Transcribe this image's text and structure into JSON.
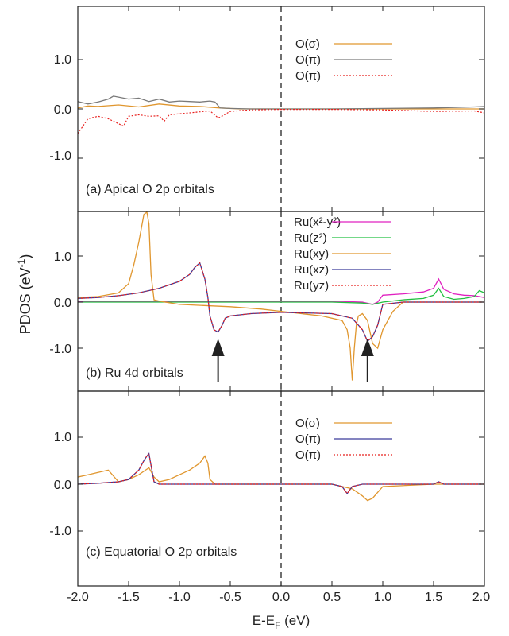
{
  "figure": {
    "ylabel": "PDOS (eV",
    "ylabel_sup": "-1",
    "ylabel_end": ")",
    "xlabel_main": "E-E",
    "xlabel_sub": "F",
    "xlabel_end": " (eV)",
    "x_ticks": [
      "-2.0",
      "-1.5",
      "-1.0",
      "-0.5",
      "0.0",
      "0.5",
      "1.0",
      "1.5",
      "2.0"
    ],
    "y_ticks": [
      "1.0",
      "0.0",
      "-1.0"
    ]
  },
  "colors": {
    "orange": "#e0962e",
    "gray": "#7a7a7a",
    "red": "#e8201e",
    "navy": "#3a3a9a",
    "magenta": "#e020c0",
    "green": "#22c040",
    "axis": "#222222"
  },
  "chart_data": [
    {
      "type": "line",
      "title": "(a) Apical O 2p orbitals",
      "xlim": [
        -2.0,
        2.0
      ],
      "ylim": [
        -1.9,
        1.9
      ],
      "legend_position": "top-right",
      "series": [
        {
          "name": "O(σ)",
          "color_key": "orange",
          "dash": "solid",
          "x": [
            -2.0,
            -1.9,
            -1.8,
            -1.6,
            -1.4,
            -1.2,
            -1.0,
            -0.8,
            -0.6,
            -0.4,
            0.0,
            0.5,
            1.0,
            1.5,
            2.0
          ],
          "y": [
            0.02,
            0.06,
            0.05,
            0.08,
            0.04,
            0.1,
            0.06,
            0.05,
            0.02,
            0.0,
            0.0,
            0.0,
            0.0,
            0.0,
            0.0
          ]
        },
        {
          "name": "O(π)",
          "color_key": "gray",
          "dash": "solid",
          "x": [
            -2.0,
            -1.9,
            -1.8,
            -1.7,
            -1.65,
            -1.6,
            -1.5,
            -1.4,
            -1.3,
            -1.2,
            -1.1,
            -1.0,
            -0.9,
            -0.8,
            -0.7,
            -0.65,
            -0.6,
            -0.5,
            -0.3,
            0.0,
            0.5,
            1.0,
            1.5,
            1.9,
            2.0
          ],
          "y": [
            0.15,
            0.1,
            0.14,
            0.2,
            0.26,
            0.24,
            0.2,
            0.22,
            0.15,
            0.2,
            0.14,
            0.16,
            0.15,
            0.14,
            0.16,
            0.14,
            0.02,
            0.01,
            0.0,
            0.0,
            0.0,
            0.01,
            0.02,
            0.04,
            0.05
          ]
        },
        {
          "name": "O(π)",
          "color_key": "red",
          "dash": "dotted",
          "x": [
            -2.0,
            -1.9,
            -1.8,
            -1.7,
            -1.6,
            -1.55,
            -1.5,
            -1.4,
            -1.3,
            -1.2,
            -1.15,
            -1.1,
            -1.0,
            -0.9,
            -0.8,
            -0.7,
            -0.62,
            -0.6,
            -0.5,
            -0.3,
            0.0,
            0.5,
            1.0,
            1.5,
            1.9,
            2.0
          ],
          "y": [
            -0.5,
            -0.2,
            -0.15,
            -0.2,
            -0.3,
            -0.35,
            -0.15,
            -0.12,
            -0.15,
            -0.14,
            -0.25,
            -0.12,
            -0.1,
            -0.08,
            -0.06,
            -0.04,
            -0.18,
            -0.17,
            -0.05,
            -0.02,
            -0.01,
            -0.01,
            -0.02,
            -0.05,
            -0.04,
            -0.08
          ]
        }
      ]
    },
    {
      "type": "line",
      "title": "(b) Ru 4d orbitals",
      "xlim": [
        -2.0,
        2.0
      ],
      "ylim": [
        -1.9,
        1.9
      ],
      "legend_position": "top-right",
      "series": [
        {
          "name": "Ru(x²-y²)",
          "color_key": "magenta",
          "dash": "solid",
          "x": [
            -2.0,
            -1.5,
            -1.0,
            -0.5,
            0.0,
            0.5,
            0.8,
            0.9,
            0.95,
            1.0,
            1.2,
            1.4,
            1.5,
            1.55,
            1.6,
            1.7,
            1.8,
            1.9,
            2.0
          ],
          "y": [
            0.02,
            0.02,
            0.02,
            0.02,
            0.02,
            0.02,
            0.0,
            -0.05,
            0.0,
            0.15,
            0.18,
            0.22,
            0.3,
            0.5,
            0.28,
            0.18,
            0.15,
            0.14,
            0.1
          ]
        },
        {
          "name": "Ru(z²)",
          "color_key": "green",
          "dash": "solid",
          "x": [
            -2.0,
            -1.5,
            -1.0,
            -0.5,
            0.0,
            0.5,
            0.8,
            0.9,
            1.0,
            1.2,
            1.4,
            1.5,
            1.55,
            1.6,
            1.7,
            1.8,
            1.9,
            1.95,
            2.0
          ],
          "y": [
            0.0,
            0.0,
            0.0,
            0.0,
            0.0,
            0.0,
            -0.02,
            -0.05,
            0.0,
            0.05,
            0.08,
            0.15,
            0.3,
            0.12,
            0.06,
            0.08,
            0.12,
            0.25,
            0.2
          ]
        },
        {
          "name": "Ru(xy)",
          "color_key": "orange",
          "dash": "solid",
          "x": [
            -2.0,
            -1.8,
            -1.6,
            -1.5,
            -1.45,
            -1.4,
            -1.35,
            -1.32,
            -1.3,
            -1.28,
            -1.25,
            -1.2,
            -1.0,
            -0.5,
            -0.2,
            0.0,
            0.2,
            0.4,
            0.6,
            0.65,
            0.68,
            0.7,
            0.72,
            0.74,
            0.76,
            0.8,
            0.85,
            0.9,
            0.95,
            1.0,
            1.1,
            1.2,
            1.5,
            2.0
          ],
          "y": [
            0.1,
            0.12,
            0.2,
            0.4,
            0.8,
            1.3,
            1.9,
            1.95,
            1.7,
            0.6,
            0.05,
            0.02,
            -0.05,
            -0.1,
            -0.15,
            -0.2,
            -0.25,
            -0.3,
            -0.4,
            -0.6,
            -1.0,
            -1.7,
            -1.0,
            -0.5,
            -0.3,
            -0.25,
            -0.4,
            -0.9,
            -1.0,
            -0.6,
            -0.2,
            0.0,
            0.0,
            0.0
          ]
        },
        {
          "name": "Ru(xz)",
          "color_key": "navy",
          "dash": "solid",
          "x": [
            -2.0,
            -1.8,
            -1.6,
            -1.4,
            -1.2,
            -1.0,
            -0.9,
            -0.85,
            -0.8,
            -0.75,
            -0.72,
            -0.7,
            -0.66,
            -0.62,
            -0.58,
            -0.55,
            -0.5,
            -0.3,
            0.0,
            0.5,
            0.7,
            0.8,
            0.85,
            0.9,
            0.95,
            1.0,
            1.2,
            1.5,
            2.0
          ],
          "y": [
            0.08,
            0.1,
            0.14,
            0.2,
            0.3,
            0.45,
            0.6,
            0.75,
            0.85,
            0.5,
            0.1,
            -0.3,
            -0.6,
            -0.65,
            -0.5,
            -0.35,
            -0.3,
            -0.25,
            -0.22,
            -0.25,
            -0.35,
            -0.6,
            -0.85,
            -0.75,
            -0.5,
            -0.05,
            0.0,
            0.0,
            0.0
          ]
        },
        {
          "name": "Ru(yz)",
          "color_key": "red",
          "dash": "dotted",
          "x": [
            -2.0,
            -1.8,
            -1.6,
            -1.4,
            -1.2,
            -1.0,
            -0.9,
            -0.85,
            -0.8,
            -0.75,
            -0.72,
            -0.7,
            -0.66,
            -0.62,
            -0.58,
            -0.55,
            -0.5,
            -0.3,
            0.0,
            0.5,
            0.7,
            0.8,
            0.85,
            0.9,
            0.95,
            1.0,
            1.2,
            1.5,
            2.0
          ],
          "y": [
            0.08,
            0.1,
            0.14,
            0.2,
            0.3,
            0.45,
            0.6,
            0.75,
            0.85,
            0.5,
            0.1,
            -0.3,
            -0.6,
            -0.65,
            -0.5,
            -0.35,
            -0.3,
            -0.25,
            -0.22,
            -0.25,
            -0.35,
            -0.6,
            -0.85,
            -0.75,
            -0.5,
            -0.05,
            0.0,
            0.0,
            0.0
          ]
        }
      ],
      "arrows_at_x": [
        -0.62,
        0.85
      ]
    },
    {
      "type": "line",
      "title": "(c) Equatorial O 2p orbitals",
      "xlim": [
        -2.0,
        2.0
      ],
      "ylim": [
        -1.9,
        1.9
      ],
      "legend_position": "top-right",
      "series": [
        {
          "name": "O(σ)",
          "color_key": "orange",
          "dash": "solid",
          "x": [
            -2.0,
            -1.9,
            -1.8,
            -1.7,
            -1.6,
            -1.5,
            -1.4,
            -1.3,
            -1.25,
            -1.2,
            -1.1,
            -1.0,
            -0.9,
            -0.8,
            -0.75,
            -0.72,
            -0.7,
            -0.65,
            -0.5,
            0.0,
            0.5,
            0.7,
            0.8,
            0.85,
            0.9,
            1.0,
            1.5,
            2.0
          ],
          "y": [
            0.15,
            0.2,
            0.25,
            0.3,
            0.05,
            0.1,
            0.2,
            0.35,
            0.15,
            0.05,
            0.1,
            0.2,
            0.3,
            0.45,
            0.6,
            0.45,
            0.1,
            0.0,
            0.0,
            0.0,
            0.0,
            -0.1,
            -0.25,
            -0.35,
            -0.3,
            -0.05,
            0.0,
            0.0
          ]
        },
        {
          "name": "O(π)",
          "color_key": "navy",
          "dash": "solid",
          "x": [
            -2.0,
            -1.8,
            -1.6,
            -1.5,
            -1.4,
            -1.35,
            -1.32,
            -1.3,
            -1.28,
            -1.25,
            -1.2,
            -1.0,
            -0.5,
            0.0,
            0.5,
            0.6,
            0.65,
            0.7,
            0.8,
            1.0,
            1.5,
            1.55,
            1.6,
            2.0
          ],
          "y": [
            0.0,
            0.02,
            0.05,
            0.1,
            0.3,
            0.5,
            0.6,
            0.65,
            0.4,
            0.05,
            0.0,
            0.0,
            0.0,
            0.0,
            0.0,
            -0.05,
            -0.2,
            -0.05,
            0.0,
            0.0,
            0.0,
            0.05,
            0.0,
            0.0
          ]
        },
        {
          "name": "O(π)",
          "color_key": "red",
          "dash": "dotted",
          "x": [
            -2.0,
            -1.8,
            -1.6,
            -1.5,
            -1.4,
            -1.35,
            -1.32,
            -1.3,
            -1.28,
            -1.25,
            -1.2,
            -1.0,
            -0.5,
            0.0,
            0.5,
            0.6,
            0.65,
            0.7,
            0.8,
            1.0,
            1.5,
            1.55,
            1.6,
            2.0
          ],
          "y": [
            0.0,
            0.02,
            0.05,
            0.1,
            0.3,
            0.5,
            0.6,
            0.65,
            0.4,
            0.05,
            0.0,
            0.0,
            0.0,
            0.0,
            0.0,
            -0.05,
            -0.2,
            -0.05,
            0.0,
            0.0,
            0.0,
            0.05,
            0.0,
            0.0
          ]
        }
      ]
    }
  ]
}
